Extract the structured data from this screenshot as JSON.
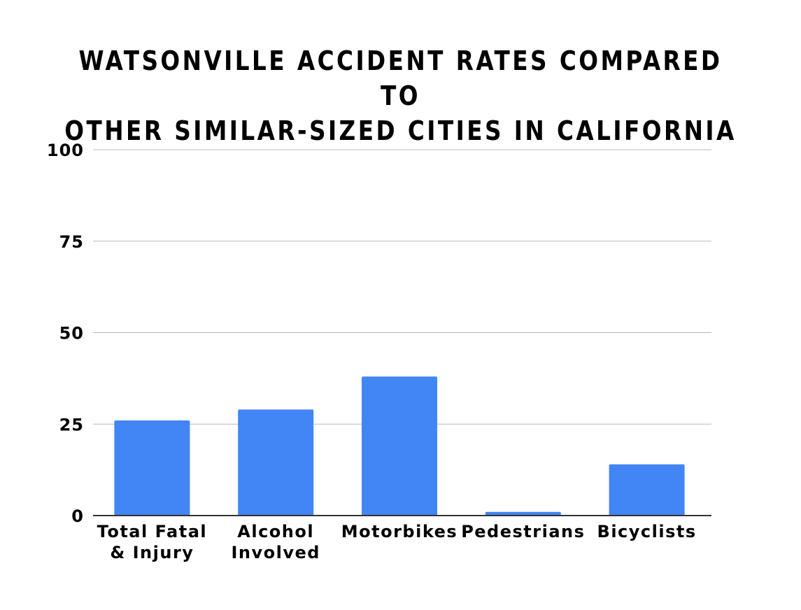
{
  "chart_data": {
    "type": "bar",
    "title_lines": [
      "WATSONVILLE ACCIDENT RATES COMPARED TO",
      "OTHER SIMILAR-SIZED CITIES IN CALIFORNIA"
    ],
    "categories": [
      [
        "Total Fatal",
        "& Injury"
      ],
      [
        "Alcohol",
        "Involved"
      ],
      [
        "Motorbikes"
      ],
      [
        "Pedestrians"
      ],
      [
        "Bicyclists"
      ]
    ],
    "values": [
      26,
      29,
      38,
      1,
      14
    ],
    "ylim": [
      0,
      100
    ],
    "yticks": [
      0,
      25,
      50,
      75,
      100
    ],
    "xlabel": "",
    "ylabel": "",
    "grid": true,
    "legend": "none",
    "bar_color": "#4285f4",
    "grid_color": "#b7b7b7",
    "axis_color": "#333333"
  }
}
